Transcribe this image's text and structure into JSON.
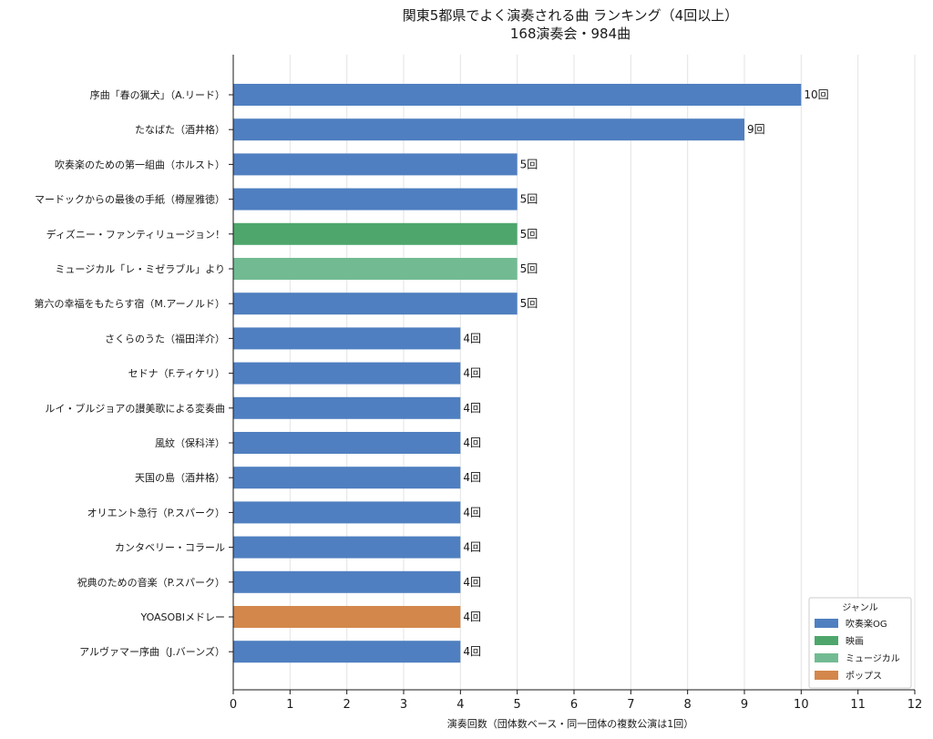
{
  "chart_data": {
    "type": "bar",
    "orientation": "horizontal",
    "title": "関東5都県でよく演奏される曲 ランキング（4回以上）",
    "subtitle": "168演奏会・984曲",
    "xlabel": "演奏回数（団体数ベース・同一団体の複数公演は1回）",
    "ylabel": "",
    "xlim": [
      0,
      12
    ],
    "xticks": [
      "0",
      "1",
      "2",
      "3",
      "4",
      "5",
      "6",
      "7",
      "8",
      "9",
      "10",
      "11",
      "12"
    ],
    "grid": "vertical",
    "value_suffix": "回",
    "categories": [
      "序曲「春の猟犬」（A.リード）",
      "たなばた（酒井格）",
      "吹奏楽のための第一組曲（ホルスト）",
      "マードックからの最後の手紙（樽屋雅徳）",
      "ディズニー・ファンティリュージョン！",
      "ミュージカル「レ・ミゼラブル」より",
      "第六の幸福をもたらす宿（M.アーノルド）",
      "さくらのうた（福田洋介）",
      "セドナ（F.ティケリ）",
      "ルイ・ブルジョアの讃美歌による変奏曲",
      "風紋（保科洋）",
      "天国の島（酒井格）",
      "オリエント急行（P.スパーク）",
      "カンタベリー・コラール",
      "祝典のための音楽（P.スパーク）",
      "YOASOBIメドレー",
      "アルヴァマー序曲（J.バーンズ）"
    ],
    "values": [
      10,
      9,
      5,
      5,
      5,
      5,
      5,
      4,
      4,
      4,
      4,
      4,
      4,
      4,
      4,
      4,
      4
    ],
    "genres": [
      "吹奏楽OG",
      "吹奏楽OG",
      "吹奏楽OG",
      "吹奏楽OG",
      "映画",
      "ミュージカル",
      "吹奏楽OG",
      "吹奏楽OG",
      "吹奏楽OG",
      "吹奏楽OG",
      "吹奏楽OG",
      "吹奏楽OG",
      "吹奏楽OG",
      "吹奏楽OG",
      "吹奏楽OG",
      "ポップス",
      "吹奏楽OG"
    ],
    "legend": {
      "title": "ジャンル",
      "placement": "bottom-right",
      "entries": [
        {
          "name": "吹奏楽OG",
          "color": "#4f7fc0"
        },
        {
          "name": "映画",
          "color": "#4ea66c"
        },
        {
          "name": "ミュージカル",
          "color": "#72bb92"
        },
        {
          "name": "ポップス",
          "color": "#d3874b"
        }
      ]
    }
  }
}
